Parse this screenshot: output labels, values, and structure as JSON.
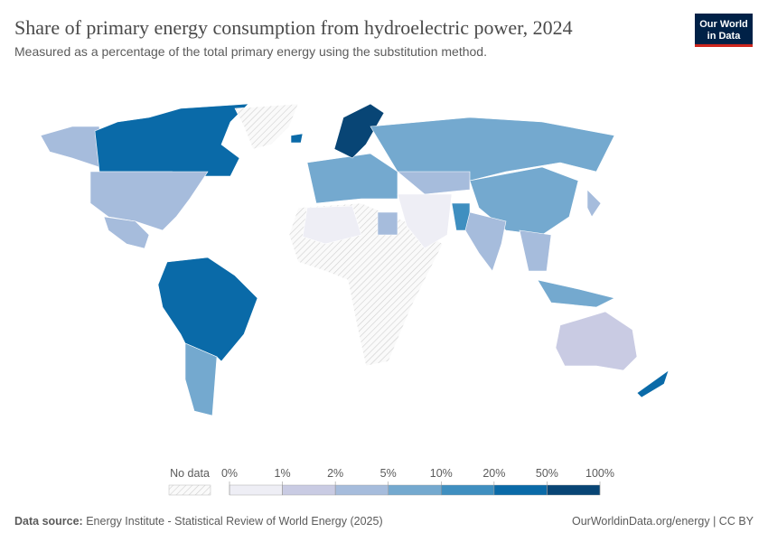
{
  "header": {
    "title": "Share of primary energy consumption from hydroelectric power, 2024",
    "subtitle": "Measured as a percentage of the total primary energy using the substitution method.",
    "logo": [
      "Our World",
      "in Data"
    ]
  },
  "legend": {
    "no_data": "No data",
    "ticks": [
      "0%",
      "1%",
      "2%",
      "5%",
      "10%",
      "20%",
      "50%",
      "100%"
    ],
    "colors": [
      "#eeeef5",
      "#c9cbe3",
      "#a6bcdc",
      "#74a9cf",
      "#3f8fc0",
      "#0a6aa8",
      "#084575"
    ]
  },
  "footer": {
    "source_label": "Data source:",
    "source": "Energy Institute - Statistical Review of World Energy (2025)",
    "link": "OurWorldinData.org/energy | CC BY"
  }
}
